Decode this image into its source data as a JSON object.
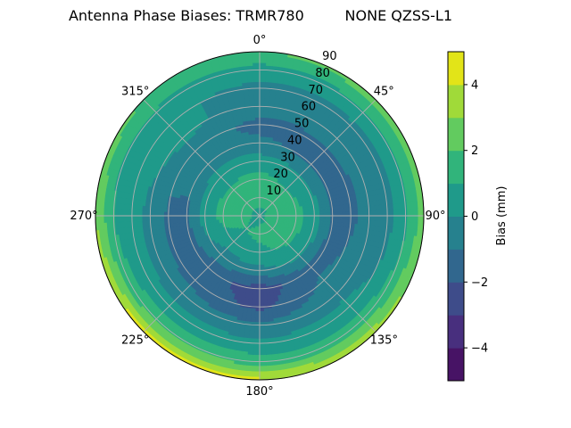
{
  "chart_data": {
    "type": "heatmap",
    "subtype": "polar-filled-contour",
    "title": "Antenna Phase Biases: TRMR780         NONE QZSS-L1",
    "angular_axis": {
      "direction": "clockwise",
      "zero": "top",
      "tick_labels": [
        "0°",
        "45°",
        "90°",
        "135°",
        "180°",
        "225°",
        "270°",
        "315°"
      ]
    },
    "radial_axis": {
      "range": [
        0,
        90
      ],
      "tick_labels": [
        "10",
        "20",
        "30",
        "40",
        "50",
        "60",
        "70",
        "80",
        "90"
      ]
    },
    "grid": true,
    "azimuths": [
      0,
      45,
      90,
      135,
      180,
      225,
      270,
      315
    ],
    "zeniths": [
      0,
      10,
      20,
      30,
      40,
      50,
      60,
      70,
      80,
      90
    ],
    "values_mm": [
      [
        0.8,
        0.8,
        0.8,
        0.8,
        0.8,
        0.8,
        0.8,
        0.8
      ],
      [
        1.3,
        1.2,
        1.5,
        1.3,
        1.2,
        1.0,
        1.3,
        1.3
      ],
      [
        1.4,
        1.0,
        1.4,
        1.2,
        0.8,
        0.6,
        1.3,
        1.2
      ],
      [
        0.5,
        0.2,
        0.5,
        0.3,
        -0.3,
        -0.5,
        0.6,
        0.4
      ],
      [
        -0.8,
        -1.2,
        -1.3,
        -1.3,
        -2.5,
        -1.6,
        -1.2,
        -0.6
      ],
      [
        -1.3,
        -1.2,
        -1.2,
        -0.8,
        -2.3,
        -1.3,
        -1.2,
        -0.5
      ],
      [
        -0.5,
        -0.5,
        -0.7,
        -0.3,
        -0.8,
        -0.5,
        -0.3,
        0.3
      ],
      [
        -0.3,
        -0.3,
        -0.5,
        0.3,
        0.3,
        0.4,
        0.4,
        0.2
      ],
      [
        0.5,
        0.8,
        0.8,
        1.5,
        1.5,
        1.6,
        1.0,
        0.8
      ],
      [
        2.0,
        2.5,
        2.5,
        3.5,
        4.2,
        4.5,
        3.0,
        2.0
      ]
    ],
    "colorbar": {
      "label": "Bias (mm)",
      "levels": [
        -5,
        -4,
        -3,
        -2,
        -1,
        0,
        1,
        2,
        3,
        4,
        5
      ],
      "tick_labels": [
        "−4",
        "−2",
        "0",
        "2",
        "4"
      ],
      "tick_values": [
        -4,
        -2,
        0,
        2,
        4
      ],
      "colormap": "viridis",
      "colors": [
        "#471365",
        "#482f7e",
        "#3e4c8a",
        "#31678e",
        "#26818e",
        "#1f9a8a",
        "#31b47b",
        "#62cb5f",
        "#a0da39",
        "#e2e418"
      ]
    }
  }
}
